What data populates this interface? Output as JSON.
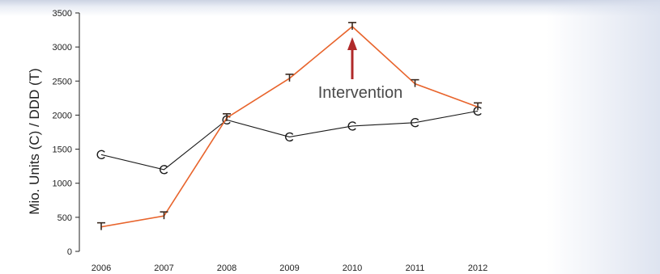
{
  "chart_data": {
    "type": "line",
    "title": "",
    "xlabel": "",
    "ylabel": "Mio. Units (C) / DDD (T)",
    "x": [
      "2006",
      "2007",
      "2008",
      "2009",
      "2010",
      "2011",
      "2012"
    ],
    "ylim": [
      0,
      3500
    ],
    "yticks": [
      0,
      500,
      1000,
      1500,
      2000,
      2500,
      3000,
      3500
    ],
    "grid": false,
    "series": [
      {
        "marker": "C",
        "color": "#1a1a1a",
        "values": [
          1420,
          1200,
          1930,
          1680,
          1840,
          1890,
          2060
        ]
      },
      {
        "marker": "T",
        "color": "#e8642c",
        "values": [
          360,
          520,
          1960,
          2540,
          3300,
          2460,
          2120
        ]
      }
    ],
    "annotation": {
      "text": "Intervention",
      "arrow_color": "#b02a2a",
      "target_x": "2010"
    }
  }
}
